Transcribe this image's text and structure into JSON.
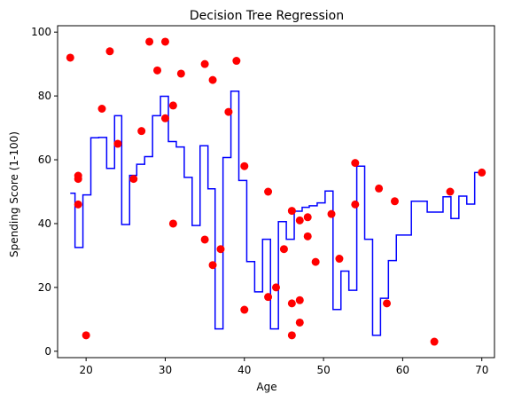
{
  "chart_data": {
    "type": "scatter",
    "title": "Decision Tree Regression",
    "xlabel": "Age",
    "ylabel": "Spending Score (1-100)",
    "xlim": [
      16.4,
      71.6
    ],
    "ylim": [
      -2,
      102
    ],
    "xticks": [
      20,
      30,
      40,
      50,
      60,
      70
    ],
    "yticks": [
      0,
      20,
      40,
      60,
      80,
      100
    ],
    "grid": false,
    "colors": {
      "points": "#ff0000",
      "line": "#0000ff",
      "axes": "#000000"
    },
    "series": [
      {
        "kind": "scatter",
        "points": [
          [
            18,
            92
          ],
          [
            19,
            55
          ],
          [
            19,
            54
          ],
          [
            19,
            46
          ],
          [
            20,
            5
          ],
          [
            22,
            76
          ],
          [
            23,
            94
          ],
          [
            24,
            65
          ],
          [
            26,
            54
          ],
          [
            27,
            69
          ],
          [
            28,
            97
          ],
          [
            29,
            88
          ],
          [
            30,
            97
          ],
          [
            30,
            73
          ],
          [
            31,
            77
          ],
          [
            31,
            40
          ],
          [
            32,
            87
          ],
          [
            35,
            90
          ],
          [
            35,
            35
          ],
          [
            36,
            85
          ],
          [
            36,
            27
          ],
          [
            37,
            32
          ],
          [
            38,
            75
          ],
          [
            39,
            91
          ],
          [
            40,
            58
          ],
          [
            40,
            13
          ],
          [
            43,
            50
          ],
          [
            43,
            17
          ],
          [
            44,
            20
          ],
          [
            45,
            32
          ],
          [
            46,
            44
          ],
          [
            46,
            15
          ],
          [
            46,
            5
          ],
          [
            47,
            41
          ],
          [
            47,
            16
          ],
          [
            47,
            9
          ],
          [
            48,
            42
          ],
          [
            48,
            36
          ],
          [
            49,
            28
          ],
          [
            51,
            43
          ],
          [
            52,
            29
          ],
          [
            54,
            59
          ],
          [
            54,
            46
          ],
          [
            57,
            51
          ],
          [
            58,
            15
          ],
          [
            59,
            47
          ],
          [
            64,
            3
          ],
          [
            66,
            50
          ],
          [
            70,
            56
          ]
        ]
      },
      {
        "kind": "step",
        "points": [
          [
            18,
            49.5
          ],
          [
            18.6,
            49.5
          ],
          [
            18.6,
            32.5
          ],
          [
            19.6,
            32.5
          ],
          [
            19.6,
            49
          ],
          [
            20.6,
            49
          ],
          [
            20.6,
            66.9
          ],
          [
            21.6,
            66.9
          ],
          [
            21.6,
            67
          ],
          [
            22.6,
            67
          ],
          [
            22.6,
            57.3
          ],
          [
            23.6,
            57.3
          ],
          [
            23.6,
            73.8
          ],
          [
            24.5,
            73.8
          ],
          [
            24.5,
            39.7
          ],
          [
            25.5,
            39.7
          ],
          [
            25.5,
            55.1
          ],
          [
            26.4,
            55.1
          ],
          [
            26.4,
            58.6
          ],
          [
            27.4,
            58.6
          ],
          [
            27.4,
            61
          ],
          [
            28.4,
            61
          ],
          [
            28.4,
            73.8
          ],
          [
            29.4,
            73.8
          ],
          [
            29.4,
            79.9
          ],
          [
            30.4,
            79.9
          ],
          [
            30.4,
            65.7
          ],
          [
            31.4,
            65.7
          ],
          [
            31.4,
            64
          ],
          [
            32.4,
            64
          ],
          [
            32.4,
            54.5
          ],
          [
            33.4,
            54.5
          ],
          [
            33.4,
            39.4
          ],
          [
            34.4,
            39.4
          ],
          [
            34.4,
            64.4
          ],
          [
            35.4,
            64.4
          ],
          [
            35.4,
            50.9
          ],
          [
            36.3,
            50.9
          ],
          [
            36.3,
            7
          ],
          [
            37.3,
            7
          ],
          [
            37.3,
            60.7
          ],
          [
            38.3,
            60.7
          ],
          [
            38.3,
            81.5
          ],
          [
            39.3,
            81.5
          ],
          [
            39.3,
            53.5
          ],
          [
            40.3,
            53.5
          ],
          [
            40.3,
            28.1
          ],
          [
            41.3,
            28.1
          ],
          [
            41.3,
            18.6
          ],
          [
            42.3,
            18.6
          ],
          [
            42.3,
            35.1
          ],
          [
            43.3,
            35.1
          ],
          [
            43.3,
            7
          ],
          [
            44.3,
            7
          ],
          [
            44.3,
            40.6
          ],
          [
            45.3,
            40.6
          ],
          [
            45.3,
            35.1
          ],
          [
            46.3,
            35.1
          ],
          [
            46.3,
            43.9
          ],
          [
            47.3,
            43.9
          ],
          [
            47.3,
            45.1
          ],
          [
            48.2,
            45.1
          ],
          [
            48.2,
            45.6
          ],
          [
            49.2,
            45.6
          ],
          [
            49.2,
            46.5
          ],
          [
            50.2,
            46.5
          ],
          [
            50.2,
            50.2
          ],
          [
            51.2,
            50.2
          ],
          [
            51.2,
            13.1
          ],
          [
            52.2,
            13.1
          ],
          [
            52.2,
            25.1
          ],
          [
            53.2,
            25.1
          ],
          [
            53.2,
            19.1
          ],
          [
            54.2,
            19.1
          ],
          [
            54.2,
            58
          ],
          [
            55.2,
            58
          ],
          [
            55.2,
            35.1
          ],
          [
            56.2,
            35.1
          ],
          [
            56.2,
            5
          ],
          [
            57.2,
            5
          ],
          [
            57.2,
            16.6
          ],
          [
            58.2,
            16.6
          ],
          [
            58.2,
            28.4
          ],
          [
            59.2,
            28.4
          ],
          [
            59.2,
            36.4
          ],
          [
            60.1,
            36.4
          ],
          [
            60.1,
            36.4
          ],
          [
            61.1,
            36.4
          ],
          [
            61.1,
            47
          ],
          [
            62.1,
            47
          ],
          [
            62.1,
            47
          ],
          [
            63.1,
            47
          ],
          [
            63.1,
            43.6
          ],
          [
            64.1,
            43.6
          ],
          [
            64.1,
            43.6
          ],
          [
            65.1,
            43.6
          ],
          [
            65.1,
            48.4
          ],
          [
            66.1,
            48.4
          ],
          [
            66.1,
            41.6
          ],
          [
            67.1,
            41.6
          ],
          [
            67.1,
            48.6
          ],
          [
            68.1,
            48.6
          ],
          [
            68.1,
            46.1
          ],
          [
            69.1,
            46.1
          ],
          [
            69.1,
            56
          ],
          [
            70,
            56
          ]
        ]
      }
    ]
  }
}
